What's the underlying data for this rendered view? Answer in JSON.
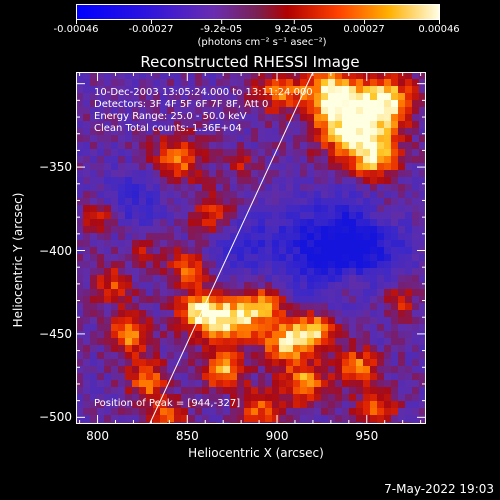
{
  "colorbar": {
    "tick_labels": [
      "-0.00046",
      "-0.00027",
      "-9.2e-05",
      "9.2e-05",
      "0.00027",
      "0.00046"
    ],
    "range": [
      -0.00046,
      0.00046
    ],
    "units": "(photons cm⁻² s⁻¹ asec⁻²)",
    "colors": [
      "#0000ff",
      "#5a2dbf",
      "#7a2f8f",
      "#a02020",
      "#ff5a00",
      "#ffb400",
      "#ffffe6"
    ]
  },
  "chart_data": {
    "type": "heatmap",
    "title": "Reconstructed RHESSI Image",
    "xlabel": "Heliocentric X (arcsec)",
    "ylabel": "Heliocentric Y (arcsec)",
    "xlim": [
      788,
      983
    ],
    "ylim": [
      -504,
      -293
    ],
    "x_ticks": [
      800,
      850,
      900,
      950
    ],
    "x_tick_labels": [
      "800",
      "850",
      "900",
      "950"
    ],
    "y_ticks": [
      -500,
      -450,
      -400,
      -350
    ],
    "y_tick_labels": [
      "−500",
      "−450",
      "−400",
      "−350"
    ],
    "limb_line": [
      [
        829,
        -504
      ],
      [
        920,
        -293
      ]
    ],
    "annotations": [
      "10-Dec-2003 13:05:24.000 to 13:11:24.000",
      "Detectors: 3F 4F 5F 6F 7F 8F, Att 0",
      "Energy Range: 25.0 - 50.0 keV",
      "Clean     Total counts: 1.36E+04"
    ],
    "peak_label": "Position of Peak = [944,-327]"
  },
  "timestamp": "7-May-2022 19:03"
}
